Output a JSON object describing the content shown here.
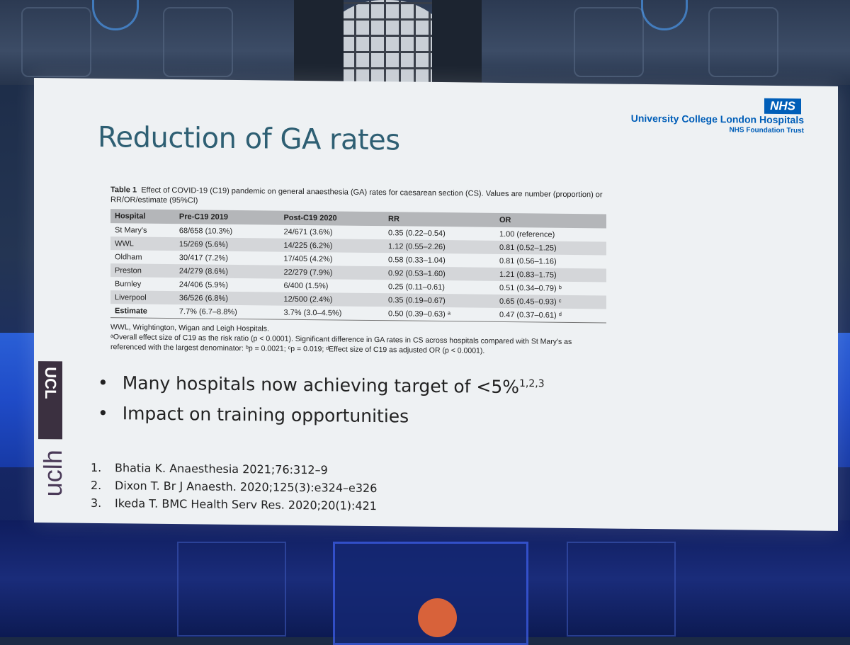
{
  "slide": {
    "org": {
      "logo": "NHS",
      "name": "University College London Hospitals",
      "trust": "NHS Foundation Trust"
    },
    "title": "Reduction of GA rates",
    "table": {
      "caption_label": "Table 1",
      "caption_text": "Effect of COVID-19 (C19) pandemic on general anaesthesia (GA) rates for caesarean section (CS). Values are number (proportion) or RR/OR/estimate (95%CI)",
      "headers": [
        "Hospital",
        "Pre-C19 2019",
        "Post-C19 2020",
        "RR",
        "OR"
      ],
      "rows": [
        [
          "St Mary's",
          "68/658 (10.3%)",
          "24/671 (3.6%)",
          "0.35 (0.22–0.54)",
          "1.00 (reference)"
        ],
        [
          "WWL",
          "15/269 (5.6%)",
          "14/225 (6.2%)",
          "1.12 (0.55–2.26)",
          "0.81 (0.52–1.25)"
        ],
        [
          "Oldham",
          "30/417 (7.2%)",
          "17/405 (4.2%)",
          "0.58 (0.33–1.04)",
          "0.81 (0.56–1.16)"
        ],
        [
          "Preston",
          "24/279 (8.6%)",
          "22/279 (7.9%)",
          "0.92 (0.53–1.60)",
          "1.21 (0.83–1.75)"
        ],
        [
          "Burnley",
          "24/406 (5.9%)",
          "6/400 (1.5%)",
          "0.25 (0.11–0.61)",
          "0.51 (0.34–0.79) ᵇ"
        ],
        [
          "Liverpool",
          "36/526 (6.8%)",
          "12/500 (2.4%)",
          "0.35 (0.19–0.67)",
          "0.65 (0.45–0.93) ᶜ"
        ],
        [
          "Estimate",
          "7.7% (6.7–8.8%)",
          "3.7% (3.0–4.5%)",
          "0.50 (0.39–0.63) ᵃ",
          "0.47 (0.37–0.61) ᵈ"
        ]
      ],
      "footnote_1": "WWL, Wrightington, Wigan and Leigh Hospitals.",
      "footnote_2": "ᵃOverall effect size of C19 as the risk ratio (p < 0.0001). Significant difference in GA rates in CS across hospitals compared with St Mary's as referenced with the largest denominator: ᵇp = 0.0021; ᶜp = 0.019; ᵈEffect size of C19 as adjusted OR (p < 0.0001)."
    },
    "bullets": [
      {
        "text": "Many hospitals now achieving target of <5%",
        "sup": "1,2,3"
      },
      {
        "text": "Impact on training opportunities",
        "sup": ""
      }
    ],
    "references": [
      {
        "num": "1.",
        "text": "Bhatia K. Anaesthesia 2021;76:312–9"
      },
      {
        "num": "2.",
        "text": "Dixon T. Br J Anaesth. 2020;125(3):e324–e326"
      },
      {
        "num": "3.",
        "text": "Ikeda T. BMC Health Serv Res. 2020;20(1):421"
      }
    ],
    "ucl_logo": "UCL",
    "uclh_logo": "uclh"
  },
  "colors": {
    "nhs_blue": "#005eb8",
    "title_teal": "#2e5f73",
    "ucl_purple": "#3b3040"
  }
}
